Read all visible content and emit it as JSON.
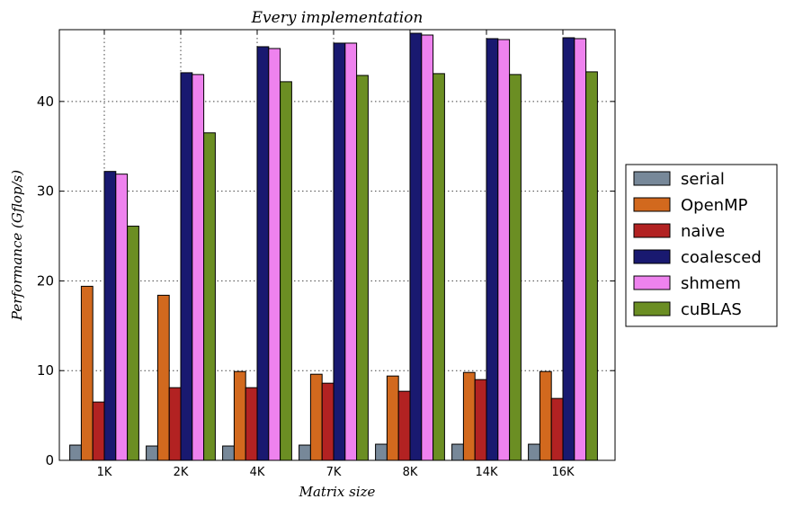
{
  "chart_data": {
    "type": "bar",
    "title": "Every implementation",
    "xlabel": "Matrix size",
    "ylabel": "Performance (Gflop/s)",
    "categories": [
      "1K",
      "2K",
      "4K",
      "7K",
      "8K",
      "14K",
      "16K"
    ],
    "ylim": [
      0,
      48
    ],
    "yticks": [
      0,
      10,
      20,
      30,
      40
    ],
    "grid": true,
    "legend_position": "right",
    "series": [
      {
        "name": "serial",
        "color": "#778899",
        "values": [
          1.7,
          1.6,
          1.6,
          1.7,
          1.8,
          1.8,
          1.8
        ]
      },
      {
        "name": "OpenMP",
        "color": "#D2691E",
        "values": [
          19.4,
          18.4,
          9.9,
          9.6,
          9.4,
          9.8,
          9.9
        ]
      },
      {
        "name": "naive",
        "color": "#B22222",
        "values": [
          6.5,
          8.1,
          8.1,
          8.6,
          7.7,
          9.0,
          6.9
        ]
      },
      {
        "name": "coalesced",
        "color": "#191970",
        "values": [
          32.2,
          43.2,
          46.1,
          46.5,
          47.6,
          47.0,
          47.1
        ]
      },
      {
        "name": "shmem",
        "color": "#EE82EE",
        "values": [
          31.9,
          43.0,
          45.9,
          46.5,
          47.4,
          46.9,
          47.0
        ]
      },
      {
        "name": "cuBLAS",
        "color": "#6B8E23",
        "values": [
          26.1,
          36.5,
          42.2,
          42.9,
          43.1,
          43.0,
          43.3
        ]
      }
    ]
  }
}
